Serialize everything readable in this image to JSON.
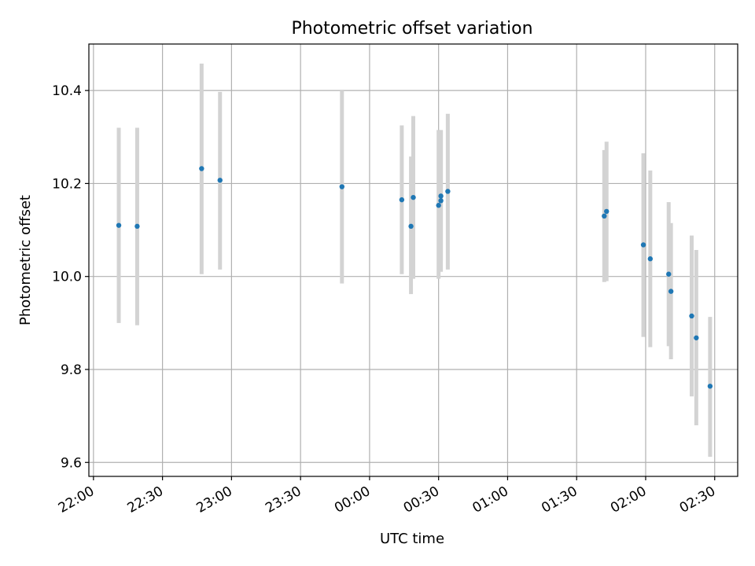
{
  "chart_data": {
    "type": "scatter",
    "title": "Photometric offset variation",
    "xlabel": "UTC time",
    "ylabel": "Photometric offset",
    "x_tick_labels": [
      "22:00",
      "22:30",
      "23:00",
      "23:30",
      "00:00",
      "00:30",
      "01:00",
      "01:30",
      "02:00",
      "02:30"
    ],
    "y_tick_labels": [
      "9.6",
      "9.8",
      "10.0",
      "10.2",
      "10.4"
    ],
    "xlim": [
      "21:58",
      "02:40"
    ],
    "ylim": [
      9.57,
      10.5
    ],
    "grid": true,
    "colors": {
      "point": "#1f77b4",
      "errorbar": "#d3d3d3",
      "grid": "#b0b0b0",
      "axes": "#000000"
    },
    "series": [
      {
        "points": [
          {
            "x": "22:11",
            "y": 10.11,
            "err_low": 9.9,
            "err_high": 10.32
          },
          {
            "x": "22:19",
            "y": 10.108,
            "err_low": 9.895,
            "err_high": 10.32
          },
          {
            "x": "22:47",
            "y": 10.232,
            "err_low": 10.005,
            "err_high": 10.458
          },
          {
            "x": "22:55",
            "y": 10.207,
            "err_low": 10.015,
            "err_high": 10.397
          },
          {
            "x": "23:48",
            "y": 10.193,
            "err_low": 9.985,
            "err_high": 10.4
          },
          {
            "x": "00:14",
            "y": 10.165,
            "err_low": 10.005,
            "err_high": 10.325
          },
          {
            "x": "00:18",
            "y": 10.108,
            "err_low": 9.962,
            "err_high": 10.258
          },
          {
            "x": "00:19",
            "y": 10.17,
            "err_low": 9.995,
            "err_high": 10.345
          },
          {
            "x": "00:30",
            "y": 10.153,
            "err_low": 9.995,
            "err_high": 10.315
          },
          {
            "x": "00:31",
            "y": 10.163,
            "err_low": 10.01,
            "err_high": 10.315
          },
          {
            "x": "00:31",
            "y": 10.173,
            "err_low": 10.035,
            "err_high": 10.313
          },
          {
            "x": "00:34",
            "y": 10.183,
            "err_low": 10.015,
            "err_high": 10.35
          },
          {
            "x": "01:42",
            "y": 10.13,
            "err_low": 9.988,
            "err_high": 10.272
          },
          {
            "x": "01:43",
            "y": 10.14,
            "err_low": 9.99,
            "err_high": 10.29
          },
          {
            "x": "01:59",
            "y": 10.068,
            "err_low": 9.87,
            "err_high": 10.265
          },
          {
            "x": "02:02",
            "y": 10.038,
            "err_low": 9.848,
            "err_high": 10.228
          },
          {
            "x": "02:10",
            "y": 10.005,
            "err_low": 9.85,
            "err_high": 10.16
          },
          {
            "x": "02:11",
            "y": 9.968,
            "err_low": 9.822,
            "err_high": 10.115
          },
          {
            "x": "02:20",
            "y": 9.915,
            "err_low": 9.742,
            "err_high": 10.088
          },
          {
            "x": "02:22",
            "y": 9.868,
            "err_low": 9.68,
            "err_high": 10.057
          },
          {
            "x": "02:28",
            "y": 9.764,
            "err_low": 9.612,
            "err_high": 9.913
          }
        ]
      }
    ]
  }
}
